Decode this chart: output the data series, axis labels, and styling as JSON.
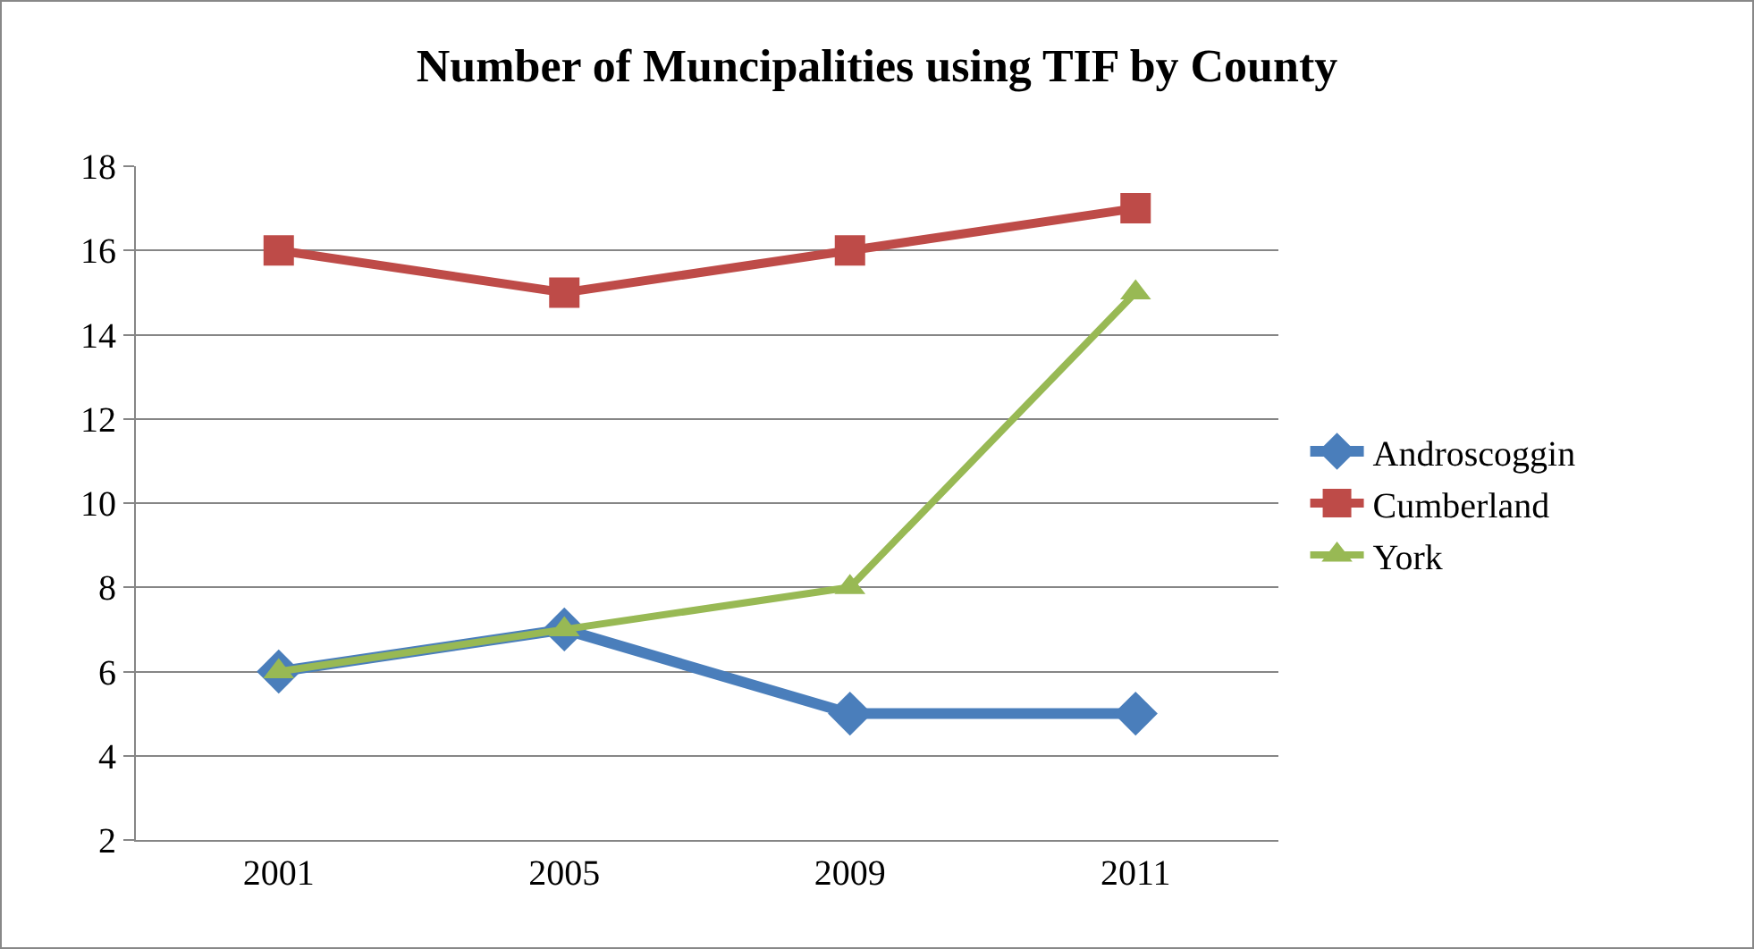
{
  "chart_data": {
    "type": "line",
    "title": "Number of Muncipalities using TIF by County",
    "categories": [
      "2001",
      "2005",
      "2009",
      "2011"
    ],
    "series": [
      {
        "name": "Androscoggin",
        "color": "#4a7ebb",
        "marker": "diamond",
        "values": [
          6,
          7,
          5,
          5
        ]
      },
      {
        "name": "Cumberland",
        "color": "#be4b48",
        "marker": "square",
        "values": [
          16,
          15,
          16,
          17
        ]
      },
      {
        "name": "York",
        "color": "#98b954",
        "marker": "triangle",
        "values": [
          6,
          7,
          8,
          15
        ]
      }
    ],
    "ylim": [
      2,
      18
    ],
    "yticks": [
      2,
      4,
      6,
      8,
      10,
      12,
      14,
      16,
      18
    ],
    "grid": "y",
    "legend": "right",
    "line_style": "solid"
  }
}
